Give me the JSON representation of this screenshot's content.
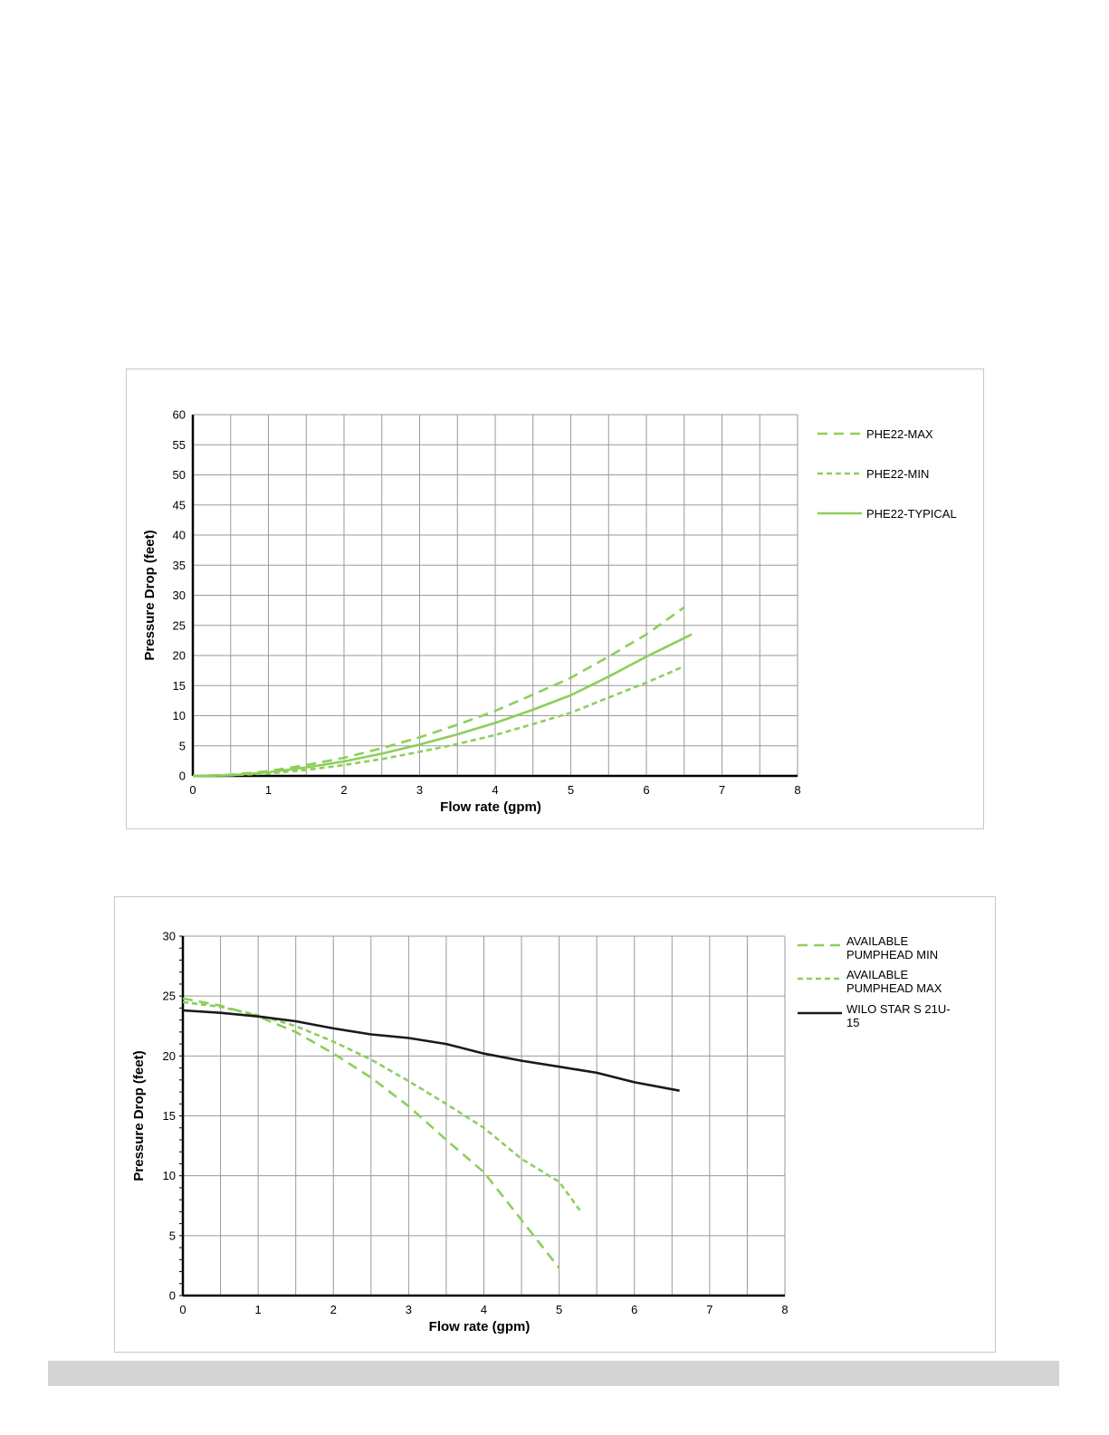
{
  "chart_data": [
    {
      "type": "line",
      "title": "",
      "xlabel": "Flow rate (gpm)",
      "ylabel": "Pressure Drop (feet)",
      "xlim": [
        0,
        8
      ],
      "ylim": [
        0,
        60
      ],
      "xticks": [
        0,
        1,
        2,
        3,
        4,
        5,
        6,
        7,
        8
      ],
      "yticks": [
        0,
        5,
        10,
        15,
        20,
        25,
        30,
        35,
        40,
        45,
        50,
        55,
        60
      ],
      "grid": true,
      "legend": "right",
      "series": [
        {
          "name": "PHE22-MAX",
          "style": "dashed",
          "color": "#8dcf5a",
          "x": [
            0,
            0.5,
            1,
            1.5,
            2,
            2.5,
            3,
            3.5,
            4,
            4.5,
            5,
            5.5,
            6,
            6.5
          ],
          "y": [
            0,
            0.2,
            0.8,
            1.8,
            3.0,
            4.6,
            6.4,
            8.5,
            10.8,
            13.5,
            16.3,
            19.8,
            23.5,
            28.0
          ]
        },
        {
          "name": "PHE22-MIN",
          "style": "dotted",
          "color": "#8dcf5a",
          "x": [
            0,
            0.5,
            1,
            1.5,
            2,
            2.5,
            3,
            3.5,
            4,
            4.5,
            5,
            5.5,
            6,
            6.5
          ],
          "y": [
            0,
            0.1,
            0.4,
            1.0,
            1.8,
            2.8,
            4.0,
            5.3,
            6.8,
            8.6,
            10.5,
            13.0,
            15.5,
            18.2
          ]
        },
        {
          "name": "PHE22-TYPICAL",
          "style": "solid",
          "color": "#8dcf5a",
          "x": [
            0,
            0.5,
            1,
            1.5,
            2,
            2.5,
            3,
            3.5,
            4,
            4.5,
            5,
            5.5,
            6,
            6.6
          ],
          "y": [
            0,
            0.1,
            0.6,
            1.4,
            2.4,
            3.7,
            5.2,
            6.9,
            8.8,
            11.0,
            13.4,
            16.5,
            19.8,
            23.5
          ]
        }
      ]
    },
    {
      "type": "line",
      "title": "",
      "xlabel": "Flow rate (gpm)",
      "ylabel": "Pressure Drop (feet)",
      "xlim": [
        0,
        8
      ],
      "ylim": [
        0,
        30
      ],
      "xticks": [
        0,
        1,
        2,
        3,
        4,
        5,
        6,
        7,
        8
      ],
      "yticks": [
        0,
        5,
        10,
        15,
        20,
        25,
        30
      ],
      "grid": true,
      "legend": "right",
      "series": [
        {
          "name": "AVAILABLE PUMPHEAD MIN",
          "style": "dashed",
          "color": "#8dcf5a",
          "x": [
            0,
            0.5,
            1,
            1.5,
            2,
            2.5,
            3,
            3.5,
            4,
            4.5,
            5
          ],
          "y": [
            24.8,
            24.2,
            23.3,
            22.0,
            20.2,
            18.2,
            15.8,
            13.0,
            10.3,
            6.3,
            2.3
          ]
        },
        {
          "name": "AVAILABLE PUMPHEAD MAX",
          "style": "dotted",
          "color": "#8dcf5a",
          "x": [
            0,
            0.5,
            1,
            1.5,
            2,
            2.5,
            3,
            3.5,
            4,
            4.5,
            5,
            5.3
          ],
          "y": [
            24.5,
            24.1,
            23.4,
            22.5,
            21.2,
            19.7,
            17.9,
            16.0,
            14.0,
            11.4,
            9.5,
            6.9
          ]
        },
        {
          "name": "WILO STAR S 21U-15",
          "style": "solid",
          "color": "#1a1a1a",
          "x": [
            0,
            0.5,
            1,
            1.5,
            2,
            2.5,
            3,
            3.5,
            4,
            4.5,
            5,
            5.5,
            6,
            6.6
          ],
          "y": [
            23.8,
            23.6,
            23.3,
            22.9,
            22.3,
            21.8,
            21.5,
            21.0,
            20.2,
            19.6,
            19.1,
            18.6,
            17.8,
            17.1
          ]
        }
      ]
    }
  ]
}
